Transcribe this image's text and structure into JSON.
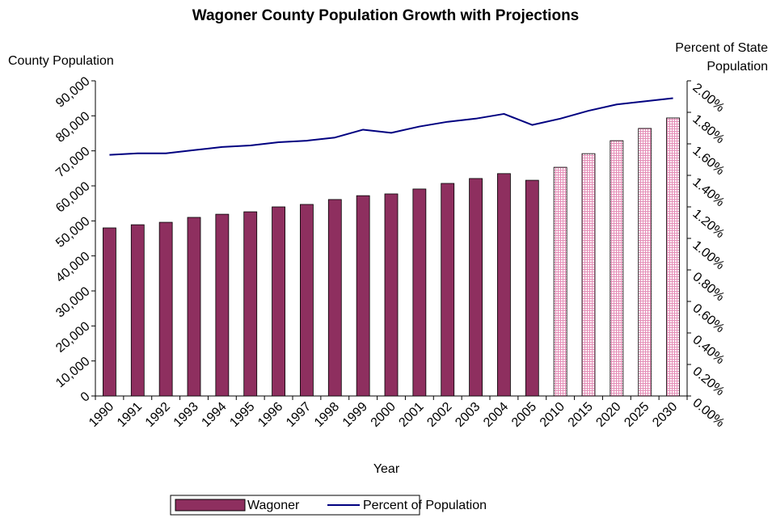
{
  "chart_data": {
    "type": "bar_line",
    "title": "Wagoner County Population Growth with Projections",
    "y_label": "County Population",
    "y2_label": "Percent of State Population",
    "x_label": "Year",
    "categories": [
      "1990",
      "1991",
      "1992",
      "1993",
      "1994",
      "1995",
      "1996",
      "1997",
      "1998",
      "1999",
      "2000",
      "2001",
      "2002",
      "2003",
      "2004",
      "2005",
      "2010",
      "2015",
      "2020",
      "2025",
      "2030"
    ],
    "series": [
      {
        "name": "Wagoner",
        "kind": "bar",
        "color": "#8e2f5f",
        "projection_color": "#e58fb8",
        "projected": [
          false,
          false,
          false,
          false,
          false,
          false,
          false,
          false,
          false,
          false,
          false,
          false,
          false,
          false,
          false,
          false,
          true,
          true,
          true,
          true,
          true
        ],
        "values": [
          48000,
          48900,
          49600,
          51000,
          51900,
          52600,
          54000,
          54700,
          56100,
          57200,
          57700,
          59100,
          60700,
          62100,
          63500,
          61600,
          65300,
          69200,
          72900,
          76400,
          79400
        ]
      },
      {
        "name": "Percent of Population",
        "kind": "line",
        "axis": "y2",
        "color": "#000080",
        "values": [
          1.53,
          1.54,
          1.54,
          1.56,
          1.58,
          1.59,
          1.61,
          1.62,
          1.64,
          1.69,
          1.67,
          1.71,
          1.74,
          1.76,
          1.79,
          1.72,
          1.76,
          1.81,
          1.85,
          1.87,
          1.89
        ]
      }
    ],
    "ylim": [
      0,
      90000
    ],
    "yticks": [
      0,
      {
        "value": 10000,
        "label": "10,000"
      },
      {
        "value": 20000,
        "label": "20,000"
      },
      {
        "value": 30000,
        "label": "30,000"
      },
      {
        "value": 40000,
        "label": "40,000"
      },
      {
        "value": 50000,
        "label": "50,000"
      },
      {
        "value": 60000,
        "label": "60,000"
      },
      {
        "value": 70000,
        "label": "70,000"
      },
      {
        "value": 80000,
        "label": "80,000"
      },
      {
        "value": 90000,
        "label": "90,000"
      }
    ],
    "y2lim": [
      0,
      2
    ],
    "y2ticks": [
      {
        "value": 0,
        "label": "0.00%"
      },
      {
        "value": 0.2,
        "label": "0.20%"
      },
      {
        "value": 0.4,
        "label": "0.40%"
      },
      {
        "value": 0.6,
        "label": "0.60%"
      },
      {
        "value": 0.8,
        "label": "0.80%"
      },
      {
        "value": 1,
        "label": "1.00%"
      },
      {
        "value": 1.2,
        "label": "1.20%"
      },
      {
        "value": 1.4,
        "label": "1.40%"
      },
      {
        "value": 1.6,
        "label": "1.60%"
      },
      {
        "value": 1.8,
        "label": "1.80%"
      },
      {
        "value": 2,
        "label": "2.00%"
      }
    ],
    "grid": false
  }
}
